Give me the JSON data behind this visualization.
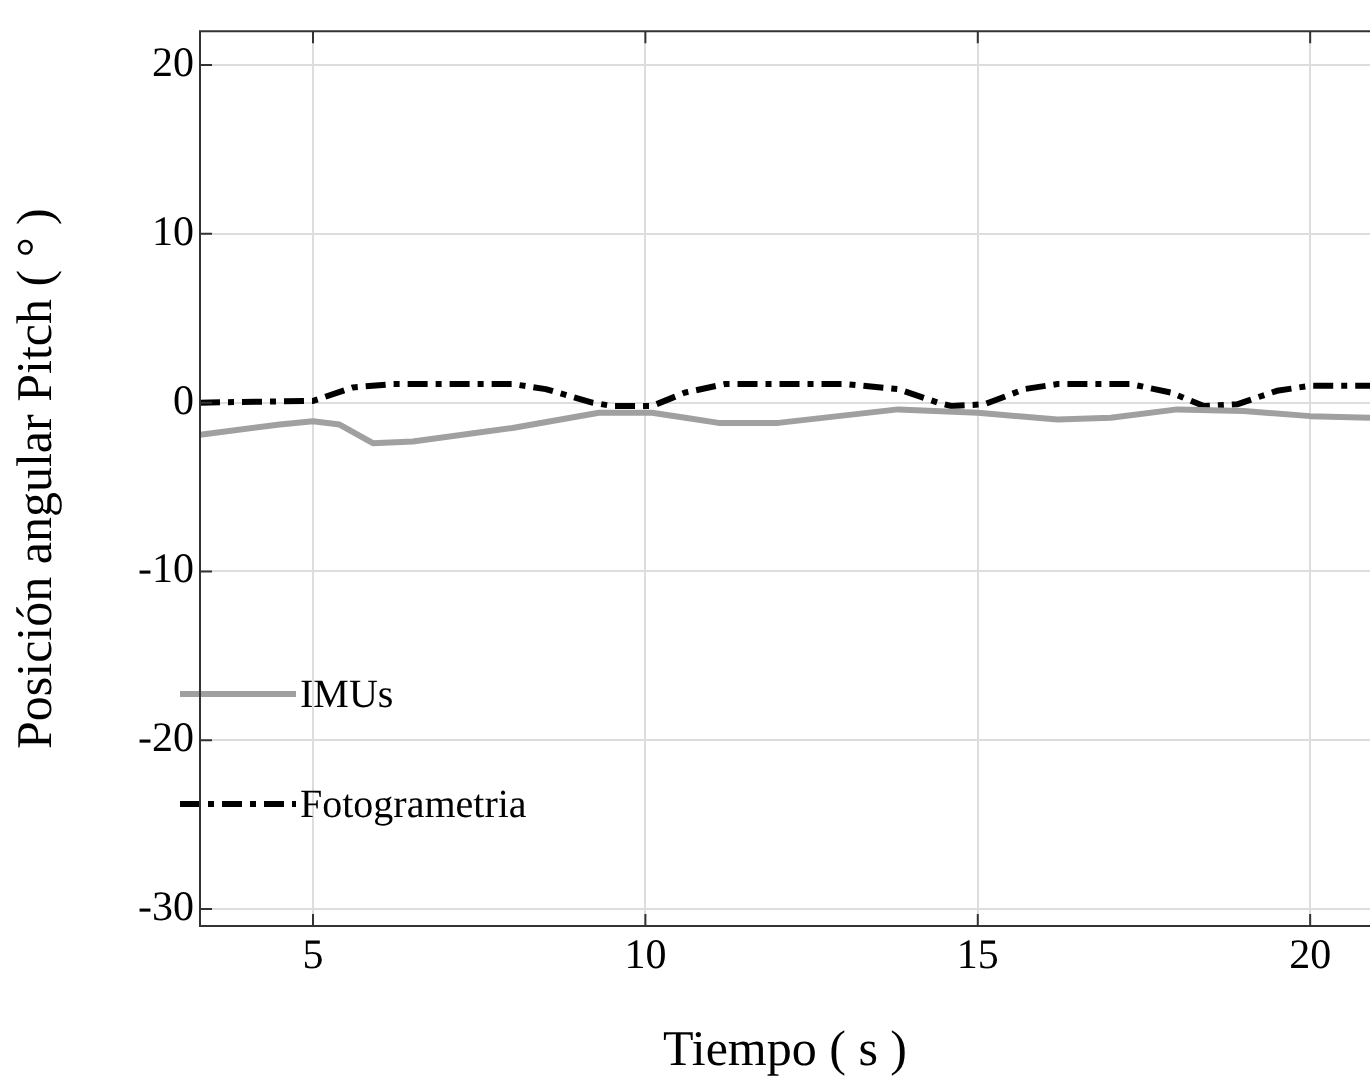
{
  "chart_data": {
    "type": "line",
    "xlabel": "Tiempo ( s )",
    "ylabel": "Posición angular Pitch ( ° )",
    "xlim": [
      3.3,
      20.9
    ],
    "xticks": [
      5,
      10,
      15,
      20
    ],
    "ylim": [
      -31,
      22
    ],
    "yticks": [
      -30,
      -20,
      -10,
      0,
      10,
      20
    ],
    "grid": true,
    "legend": "bottom left",
    "marker": "none",
    "series": [
      {
        "name": "IMUs",
        "color": "#a0a0a0",
        "line_style": "solid",
        "x": [
          3.3,
          4.5,
          5,
          5.4,
          5.9,
          6.5,
          8,
          9.3,
          10.1,
          10.6,
          11.1,
          12,
          13.8,
          15,
          16.2,
          17,
          18,
          19,
          20,
          20.9
        ],
        "values": [
          -1.9,
          -1.3,
          -1.1,
          -1.3,
          -2.4,
          -2.3,
          -1.5,
          -0.6,
          -0.6,
          -0.9,
          -1.2,
          -1.2,
          -0.4,
          -0.6,
          -1,
          -0.9,
          -0.4,
          -0.5,
          -0.8,
          -0.9
        ]
      },
      {
        "name": "Fotogrametria",
        "color": "#000000",
        "line_style": "dashed",
        "x": [
          3.3,
          5,
          5.6,
          6.2,
          8,
          8.5,
          9.2,
          9.5,
          10.1,
          10.6,
          11.2,
          13,
          13.8,
          14.4,
          14.6,
          15.1,
          15.7,
          16.2,
          17.3,
          17.9,
          18.4,
          18.9,
          19.5,
          20,
          20.9
        ],
        "values": [
          0,
          0.1,
          0.9,
          1.1,
          1.1,
          0.8,
          0,
          -0.2,
          -0.2,
          0.6,
          1.1,
          1.1,
          0.8,
          0,
          -0.2,
          -0.1,
          0.8,
          1.1,
          1.1,
          0.6,
          -0.2,
          -0.1,
          0.7,
          1,
          1
        ]
      }
    ]
  }
}
